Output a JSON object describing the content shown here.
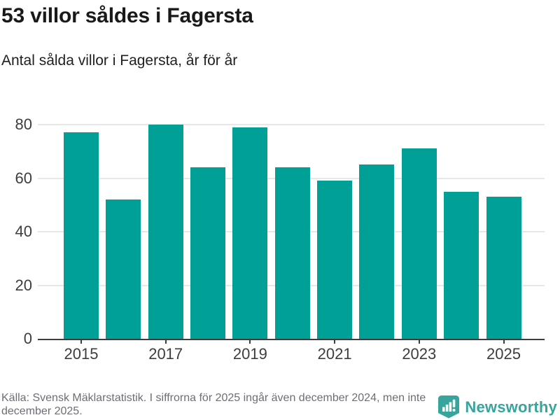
{
  "header": {
    "title": "53 villor såldes i Fagersta",
    "subtitle": "Antal sålda villor i Fagersta, år för år"
  },
  "chart_data": {
    "type": "bar",
    "title": "53 villor såldes i Fagersta",
    "subtitle": "Antal sålda villor i Fagersta, år för år",
    "categories": [
      "2015",
      "2016",
      "2017",
      "2018",
      "2019",
      "2020",
      "2021",
      "2022",
      "2023",
      "2024",
      "2025"
    ],
    "values": [
      77,
      52,
      80,
      64,
      79,
      64,
      59,
      65,
      71,
      55,
      53
    ],
    "xlabel": "",
    "ylabel": "",
    "ylim": [
      0,
      80
    ],
    "yticks": [
      0,
      20,
      40,
      60,
      80
    ],
    "xtick_labels": [
      "2015",
      "2017",
      "2019",
      "2021",
      "2023",
      "2025"
    ],
    "grid": true,
    "legend": false,
    "bar_color": "#00a096",
    "axis_color": "#3d3d3d",
    "gridline_color": "#e7e7e7"
  },
  "footer": {
    "source": "Källa: Svensk Mäklarstatistik. I siffrorna för 2025 ingår även december 2024, men inte december 2025.",
    "brand": {
      "name": "Newsworthy",
      "color": "#38a59c"
    }
  }
}
